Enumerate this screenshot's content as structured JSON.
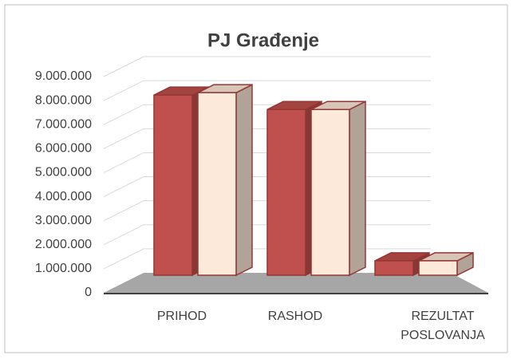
{
  "chart_data": {
    "type": "bar3d",
    "title": "PJ Građenje",
    "categories": [
      "PRIHOD",
      "RASHOD",
      "REZULTAT POSLOVANJA"
    ],
    "series": [
      {
        "color": "#c0504d",
        "values": [
          7500000,
          6900000,
          600000
        ]
      },
      {
        "color": "#fde9d9",
        "values": [
          7600000,
          6900000,
          600000
        ]
      }
    ],
    "ylim": [
      0,
      9000000
    ],
    "yticks": [
      0,
      {
        "value": 1000000,
        "label": "1.000.000"
      },
      {
        "value": 2000000,
        "label": "2.000.000"
      },
      {
        "value": 3000000,
        "label": "3.000.000"
      },
      {
        "value": 4000000,
        "label": "4.000.000"
      },
      {
        "value": 5000000,
        "label": "5.000.000"
      },
      {
        "value": 6000000,
        "label": "6.000.000"
      },
      {
        "value": 7000000,
        "label": "7.000.000"
      },
      {
        "value": 8000000,
        "label": "8.000.000"
      },
      {
        "value": 9000000,
        "label": "9.000.000"
      }
    ],
    "grid": true
  }
}
